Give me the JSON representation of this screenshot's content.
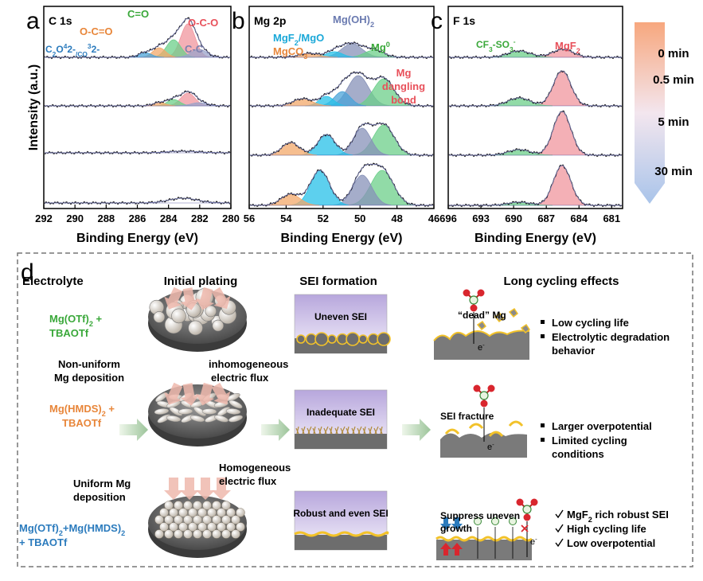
{
  "panel_a": {
    "letter": "a",
    "title": "C 1s",
    "y_label": "Intensity (a.u.)",
    "x_label": "Binding Energy (eV)",
    "xlim": [
      292,
      280
    ],
    "xticks": [
      292,
      290,
      288,
      286,
      284,
      282,
      280
    ],
    "labels": {
      "c_eq_o": "C=O",
      "o_c_eq_o": "O-C=O",
      "o_c_o": "O-C-O",
      "c_c": "C-C",
      "oxalate": [
        "C",
        "2",
        "O",
        "4",
        "2-",
        "/CO",
        "3",
        "2-"
      ]
    }
  },
  "panel_b": {
    "letter": "b",
    "title": "Mg 2p",
    "x_label": "Binding Energy (eV)",
    "xlim": [
      56,
      46
    ],
    "xticks": [
      56,
      54,
      52,
      50,
      48,
      46
    ],
    "labels": {
      "mg_oh2": [
        "Mg(OH)",
        "2"
      ],
      "mgf2_mgo": [
        "MgF",
        "2",
        "/MgO"
      ],
      "mgco3": [
        "MgCO",
        "3"
      ],
      "mg0": [
        "Mg",
        "0"
      ],
      "dangling": [
        "Mg",
        "dangling",
        "bond"
      ]
    }
  },
  "panel_c": {
    "letter": "c",
    "title": "F 1s",
    "x_label": "Binding Energy (eV)",
    "xlim": [
      696,
      680
    ],
    "xticks": [
      696,
      693,
      690,
      687,
      684,
      681
    ],
    "labels": {
      "cf3_so3": [
        "CF",
        "3",
        "-SO",
        "3",
        "-"
      ],
      "mgf2": [
        "MgF",
        "2"
      ]
    }
  },
  "times": [
    "0 min",
    "0.5 min",
    "5 min",
    "30 min"
  ],
  "panel_d": {
    "letter": "d",
    "headers": [
      "Electrolyte",
      "Initial plating",
      "SEI formation",
      "Long cycling effects"
    ],
    "electrolytes": [
      [
        "Mg(OTf)",
        "2",
        " +",
        "TBAOTf"
      ],
      [
        "Mg(HMDS)",
        "2",
        " +",
        "TBAOTf"
      ],
      [
        "Mg(OTf)",
        "2",
        "+Mg(HMDS)",
        "2",
        "+ TBAOTf"
      ]
    ],
    "plating_notes": {
      "non_uniform": [
        "Non-uniform",
        "Mg deposition"
      ],
      "inhomogeneous": [
        "inhomogeneous",
        "electric flux"
      ],
      "homogeneous": [
        "Homogeneous",
        "electric flux"
      ],
      "uniform": [
        "Uniform Mg",
        "deposition"
      ]
    },
    "sei": [
      "Uneven SEI",
      "Inadequate SEI",
      "Robust and even SEI"
    ],
    "cycling_notes": {
      "dead": "“dead” Mg",
      "fracture": "SEI fracture",
      "suppress": [
        "Suppress uneven",
        "growth"
      ],
      "electron": [
        "e",
        "-"
      ]
    },
    "effects": [
      [
        "Low cycling life",
        "Electrolytic degradation",
        "behavior"
      ],
      [
        "Larger overpotential",
        "Limited cycling",
        "conditions"
      ],
      [
        [
          "MgF",
          "2",
          " rich robust SEI"
        ],
        "High cycling life",
        "Low overpotential"
      ]
    ]
  }
}
